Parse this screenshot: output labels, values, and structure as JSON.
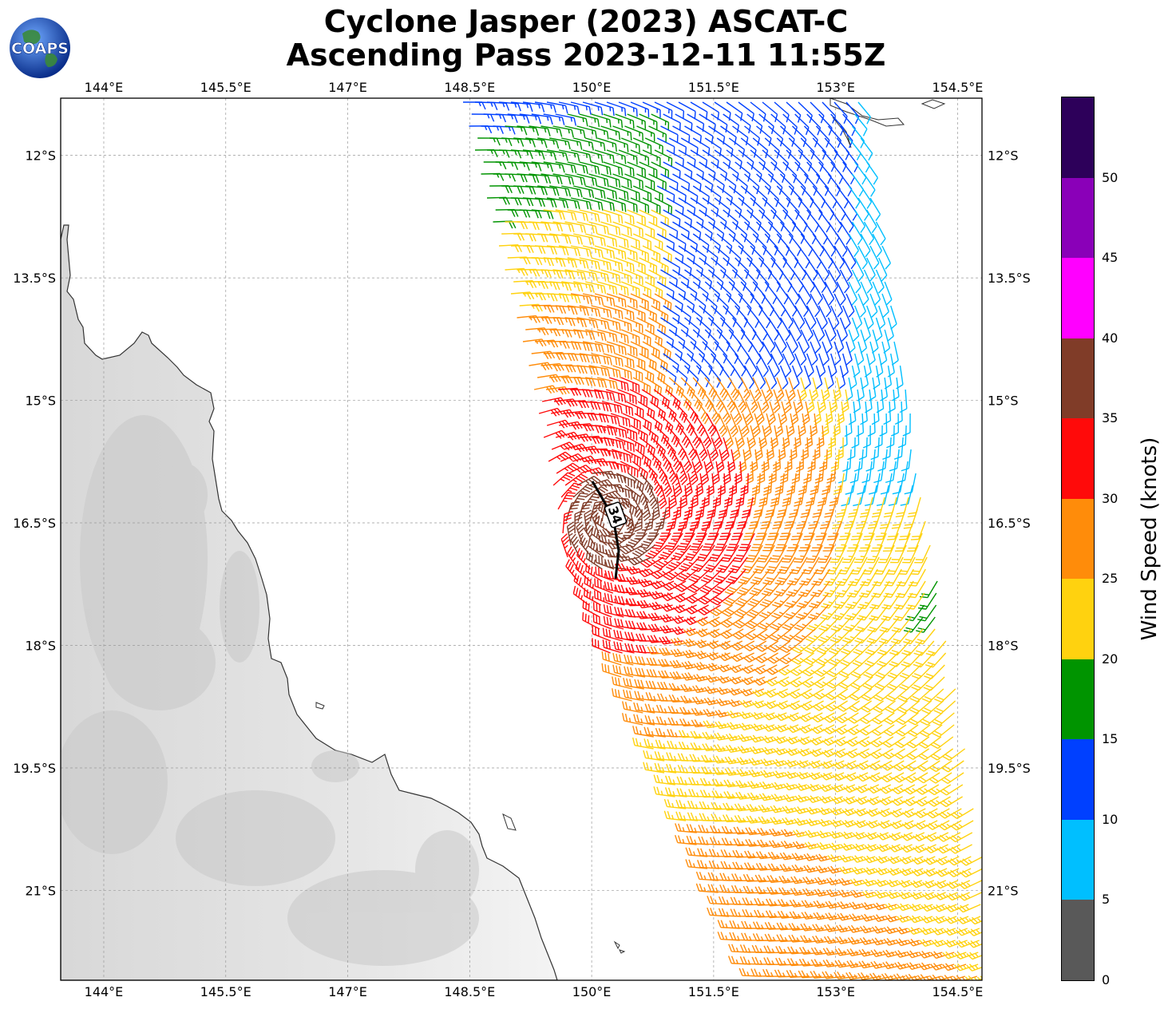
{
  "title": {
    "line1": "Cyclone Jasper (2023) ASCAT-C",
    "line2": "Ascending Pass 2023-12-11 11:55Z"
  },
  "logo": {
    "text": "COAPS",
    "icon": "globe-icon"
  },
  "map": {
    "lon_range": [
      143.47,
      154.8
    ],
    "lat_range": [
      -22.1,
      -11.3
    ],
    "lon_ticks": [
      "144°E",
      "145.5°E",
      "147°E",
      "148.5°E",
      "150°E",
      "151.5°E",
      "153°E",
      "154.5°E"
    ],
    "lat_ticks": [
      "12°S",
      "13.5°S",
      "15°S",
      "16.5°S",
      "18°S",
      "19.5°S",
      "21°S"
    ],
    "gridlines": true,
    "land_color": "#dcdcdc",
    "wind_contour_label": "34"
  },
  "colorbar": {
    "label": "Wind Speed (knots)",
    "ticks": [
      "0",
      "5",
      "10",
      "15",
      "20",
      "25",
      "30",
      "35",
      "40",
      "45",
      "50"
    ],
    "bins": [
      {
        "range": [
          0,
          5
        ],
        "color": "#595959"
      },
      {
        "range": [
          5,
          10
        ],
        "color": "#00bfff"
      },
      {
        "range": [
          10,
          15
        ],
        "color": "#0040ff"
      },
      {
        "range": [
          15,
          20
        ],
        "color": "#009400"
      },
      {
        "range": [
          20,
          25
        ],
        "color": "#ffd20f"
      },
      {
        "range": [
          25,
          30
        ],
        "color": "#ff8c0a"
      },
      {
        "range": [
          30,
          35
        ],
        "color": "#ff0a0a"
      },
      {
        "range": [
          35,
          40
        ],
        "color": "#803c28"
      },
      {
        "range": [
          40,
          45
        ],
        "color": "#ff00ff"
      },
      {
        "range": [
          45,
          50
        ],
        "color": "#8a00b8"
      },
      {
        "range": [
          50,
          55
        ],
        "color": "#2d005a"
      }
    ]
  }
}
